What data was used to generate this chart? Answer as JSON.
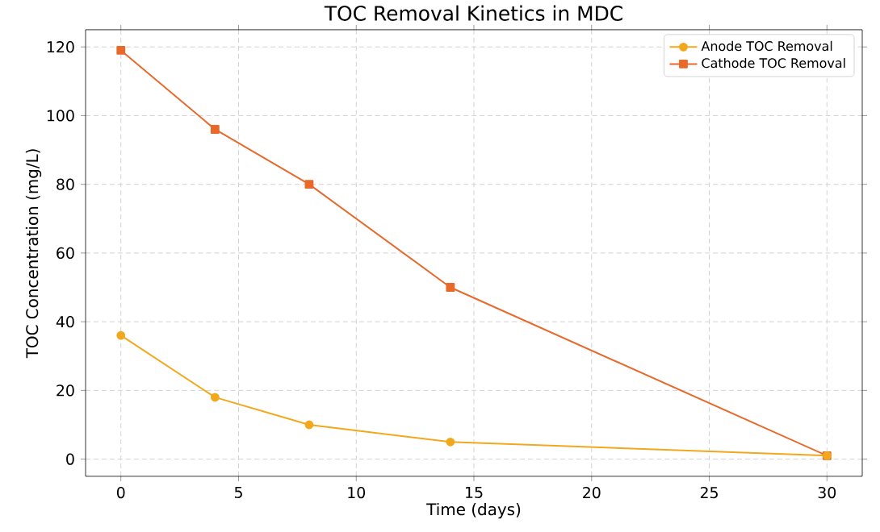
{
  "chart_data": {
    "type": "line",
    "title": "TOC Removal Kinetics in MDC",
    "xlabel": "Time (days)",
    "ylabel": "TOC Concentration (mg/L)",
    "x": [
      0,
      4,
      8,
      14,
      30
    ],
    "series": [
      {
        "name": "Anode TOC Removal",
        "color": "#f2a81d",
        "marker": "circle",
        "values": [
          36,
          18,
          10,
          5,
          1
        ]
      },
      {
        "name": "Cathode TOC Removal",
        "color": "#e8692a",
        "marker": "square",
        "values": [
          119,
          96,
          80,
          50,
          1
        ]
      }
    ],
    "xlim": [
      -1.5,
      31.5
    ],
    "ylim": [
      -5,
      125
    ],
    "xticks": [
      0,
      5,
      10,
      15,
      20,
      25,
      30
    ],
    "yticks": [
      0,
      20,
      40,
      60,
      80,
      100,
      120
    ],
    "grid": true,
    "legend": "top right",
    "line_style": "solid"
  }
}
